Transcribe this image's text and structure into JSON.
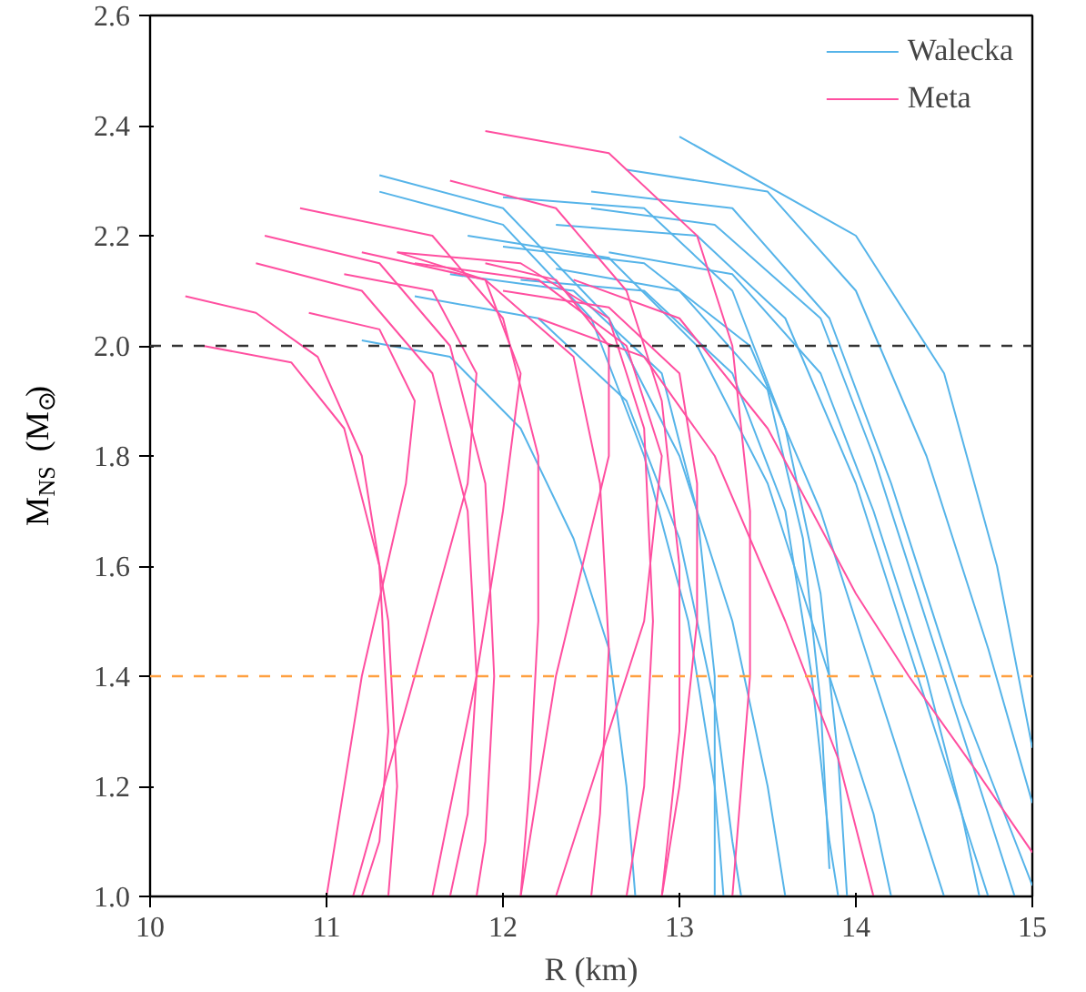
{
  "chart_data": {
    "type": "line",
    "xlabel": "R (km)",
    "ylabel": "M$_{NS}$ (M$_{⊙}$)",
    "xlim": [
      10,
      15
    ],
    "xticks": [
      10,
      11,
      12,
      13,
      14,
      15
    ],
    "ylim": [
      1.0,
      2.6
    ],
    "yticks": [
      {
        "value": 1.0,
        "label": "1.0"
      },
      {
        "value": 1.2,
        "label": "1.2"
      },
      {
        "value": 1.4,
        "label": "1.4"
      },
      {
        "value": 1.6,
        "label": "1.6"
      },
      {
        "value": 1.8,
        "label": "1.8"
      },
      {
        "value": 2.0,
        "label": "2.0"
      },
      {
        "value": 2.2,
        "label": "2.2"
      },
      {
        "value": 2.4,
        "label": "2.4"
      },
      {
        "value": 2.6,
        "label": "2.6"
      }
    ],
    "grid": false,
    "legend": "top right",
    "marker": "none",
    "line_style": "solid",
    "ref_lines": [
      {
        "axis": "y",
        "value": 2.0,
        "label": null,
        "color": "#333333",
        "line_style": "dashed"
      },
      {
        "axis": "y",
        "value": 1.4,
        "label": null,
        "color": "#ffa040",
        "line_style": "dashed"
      }
    ],
    "series": [
      {
        "name": "Walecka",
        "color": "#56b4e9",
        "x": [
          13.0,
          14.0,
          14.5,
          14.8,
          15.0
        ],
        "values": [
          2.38,
          2.2,
          1.95,
          1.6,
          1.27
        ]
      },
      {
        "color": "#56b4e9",
        "x": [
          12.7,
          13.5,
          14.0,
          14.4,
          14.75,
          15.0
        ],
        "values": [
          2.32,
          2.28,
          2.1,
          1.8,
          1.45,
          1.17
        ]
      },
      {
        "color": "#56b4e9",
        "x": [
          12.5,
          13.3,
          13.85,
          14.2,
          14.6,
          15.0
        ],
        "values": [
          2.28,
          2.25,
          2.05,
          1.75,
          1.35,
          1.02
        ]
      },
      {
        "color": "#56b4e9",
        "x": [
          11.3,
          12.0,
          12.6,
          13.0,
          13.3,
          13.5,
          13.6
        ],
        "values": [
          2.31,
          2.25,
          2.05,
          1.8,
          1.5,
          1.2,
          1.0
        ]
      },
      {
        "color": "#56b4e9",
        "x": [
          11.3,
          12.0,
          12.5,
          12.8,
          13.05,
          13.2,
          13.25
        ],
        "values": [
          2.28,
          2.22,
          2.05,
          1.8,
          1.5,
          1.2,
          1.0
        ]
      },
      {
        "color": "#56b4e9",
        "x": [
          12.0,
          12.8,
          13.4,
          13.8,
          14.1,
          14.35,
          14.5
        ],
        "values": [
          2.18,
          2.15,
          2.0,
          1.7,
          1.4,
          1.15,
          1.0
        ]
      },
      {
        "color": "#56b4e9",
        "x": [
          12.3,
          13.1,
          13.6,
          14.0,
          14.3,
          14.6,
          14.75
        ],
        "values": [
          2.22,
          2.2,
          2.05,
          1.75,
          1.45,
          1.15,
          1.0
        ]
      },
      {
        "color": "#56b4e9",
        "x": [
          11.8,
          12.6,
          13.1,
          13.5,
          13.8,
          14.1,
          14.2
        ],
        "values": [
          2.2,
          2.16,
          2.0,
          1.75,
          1.45,
          1.15,
          1.0
        ]
      },
      {
        "color": "#56b4e9",
        "x": [
          11.2,
          11.7,
          12.1,
          12.4,
          12.6,
          12.7,
          12.75
        ],
        "values": [
          2.01,
          1.98,
          1.85,
          1.65,
          1.45,
          1.2,
          1.0
        ]
      },
      {
        "color": "#56b4e9",
        "x": [
          12.1,
          12.8,
          13.3,
          13.6,
          13.75,
          13.85,
          13.9
        ],
        "values": [
          2.12,
          2.1,
          1.95,
          1.7,
          1.4,
          1.1,
          1.0
        ]
      },
      {
        "color": "#56b4e9",
        "x": [
          11.5,
          12.2,
          12.7,
          13.0,
          13.2,
          13.3,
          13.35
        ],
        "values": [
          2.09,
          2.05,
          1.9,
          1.65,
          1.35,
          1.1,
          1.0
        ]
      },
      {
        "color": "#56b4e9",
        "x": [
          11.7,
          12.4,
          12.9,
          13.1,
          13.2,
          13.2,
          13.2
        ],
        "values": [
          2.13,
          2.1,
          1.95,
          1.7,
          1.4,
          1.1,
          1.0
        ]
      },
      {
        "color": "#56b4e9",
        "x": [
          12.5,
          13.2,
          13.8,
          14.1,
          14.4,
          14.7,
          14.9
        ],
        "values": [
          2.25,
          2.22,
          2.05,
          1.8,
          1.5,
          1.2,
          1.0
        ]
      },
      {
        "color": "#56b4e9",
        "x": [
          12.0,
          12.8,
          13.3,
          13.6,
          13.8,
          13.9,
          13.95
        ],
        "values": [
          2.27,
          2.25,
          2.1,
          1.85,
          1.55,
          1.25,
          1.0
        ]
      },
      {
        "color": "#56b4e9",
        "x": [
          12.6,
          13.3,
          13.8,
          14.1,
          14.4,
          14.6,
          14.7
        ],
        "values": [
          2.17,
          2.13,
          1.95,
          1.7,
          1.4,
          1.15,
          1.0
        ]
      },
      {
        "color": "#56b4e9",
        "x": [
          12.3,
          13.0,
          13.5,
          13.7,
          13.8,
          13.85
        ],
        "values": [
          2.14,
          2.1,
          1.92,
          1.65,
          1.35,
          1.05
        ]
      },
      {
        "name": "Meta",
        "color": "#ff4fa0",
        "x": [
          10.2,
          10.6,
          10.95,
          11.2,
          11.35,
          11.4,
          11.35
        ],
        "values": [
          2.09,
          2.06,
          1.98,
          1.8,
          1.5,
          1.2,
          1.0
        ]
      },
      {
        "color": "#ff4fa0",
        "x": [
          10.3,
          10.8,
          11.1,
          11.3,
          11.35,
          11.3,
          11.2
        ],
        "values": [
          2.0,
          1.97,
          1.85,
          1.6,
          1.3,
          1.1,
          1.0
        ]
      },
      {
        "color": "#ff4fa0",
        "x": [
          10.6,
          11.2,
          11.6,
          11.8,
          11.85,
          11.8,
          11.7
        ],
        "values": [
          2.15,
          2.1,
          1.95,
          1.7,
          1.4,
          1.15,
          1.0
        ]
      },
      {
        "color": "#ff4fa0",
        "x": [
          10.65,
          11.3,
          11.7,
          11.9,
          11.95,
          11.9,
          11.85
        ],
        "values": [
          2.2,
          2.15,
          2.0,
          1.75,
          1.4,
          1.1,
          1.0
        ]
      },
      {
        "color": "#ff4fa0",
        "x": [
          10.85,
          11.6,
          12.0,
          12.2,
          12.2,
          12.15,
          12.1
        ],
        "values": [
          2.25,
          2.2,
          2.05,
          1.8,
          1.5,
          1.2,
          1.0
        ]
      },
      {
        "color": "#ff4fa0",
        "x": [
          10.9,
          11.3,
          11.5,
          11.45,
          11.2,
          11.0
        ],
        "values": [
          2.06,
          2.03,
          1.9,
          1.75,
          1.4,
          1.0
        ]
      },
      {
        "color": "#ff4fa0",
        "x": [
          11.1,
          11.6,
          11.85,
          11.8,
          11.5,
          11.15
        ],
        "values": [
          2.13,
          2.1,
          1.95,
          1.75,
          1.4,
          1.0
        ]
      },
      {
        "color": "#ff4fa0",
        "x": [
          11.4,
          11.9,
          12.1,
          12.0,
          11.85,
          11.6
        ],
        "values": [
          2.17,
          2.12,
          1.95,
          1.7,
          1.4,
          1.0
        ]
      },
      {
        "color": "#ff4fa0",
        "x": [
          11.7,
          12.3,
          12.7,
          12.9,
          13.0,
          13.0,
          12.9
        ],
        "values": [
          2.3,
          2.25,
          2.1,
          1.9,
          1.6,
          1.3,
          1.0
        ]
      },
      {
        "color": "#ff4fa0",
        "x": [
          11.9,
          12.6,
          13.1,
          13.3,
          13.4,
          13.4,
          13.3
        ],
        "values": [
          2.39,
          2.35,
          2.2,
          2.0,
          1.7,
          1.4,
          1.0
        ]
      },
      {
        "color": "#ff4fa0",
        "x": [
          11.4,
          12.1,
          12.6,
          12.8,
          12.85,
          12.8,
          12.7
        ],
        "values": [
          2.17,
          2.15,
          2.05,
          1.85,
          1.5,
          1.2,
          1.0
        ]
      },
      {
        "color": "#ff4fa0",
        "x": [
          12.0,
          12.6,
          13.0,
          13.1,
          13.1,
          13.0,
          12.9
        ],
        "values": [
          2.1,
          2.07,
          1.95,
          1.75,
          1.5,
          1.2,
          1.0
        ]
      },
      {
        "color": "#ff4fa0",
        "x": [
          11.2,
          11.9,
          12.4,
          12.55,
          12.6,
          12.55,
          12.5
        ],
        "values": [
          2.17,
          2.12,
          1.98,
          1.75,
          1.45,
          1.15,
          1.0
        ]
      },
      {
        "color": "#ff4fa0",
        "x": [
          12.4,
          13.0,
          13.5,
          14.0,
          14.3,
          14.7,
          15.0
        ],
        "values": [
          2.12,
          2.05,
          1.85,
          1.55,
          1.4,
          1.22,
          1.08
        ]
      },
      {
        "color": "#ff4fa0",
        "x": [
          12.2,
          12.8,
          13.2,
          13.6,
          13.9,
          14.1
        ],
        "values": [
          2.05,
          1.98,
          1.8,
          1.5,
          1.25,
          1.0
        ]
      },
      {
        "color": "#ff4fa0",
        "x": [
          11.5,
          12.2,
          12.7,
          12.9,
          12.8,
          12.5,
          12.3
        ],
        "values": [
          2.15,
          2.12,
          2.0,
          1.8,
          1.5,
          1.2,
          1.0
        ]
      },
      {
        "color": "#ff4fa0",
        "x": [
          11.9,
          12.3,
          12.6,
          12.6,
          12.3,
          12.1
        ],
        "values": [
          2.15,
          2.12,
          2.0,
          1.8,
          1.4,
          1.0
        ]
      }
    ]
  }
}
